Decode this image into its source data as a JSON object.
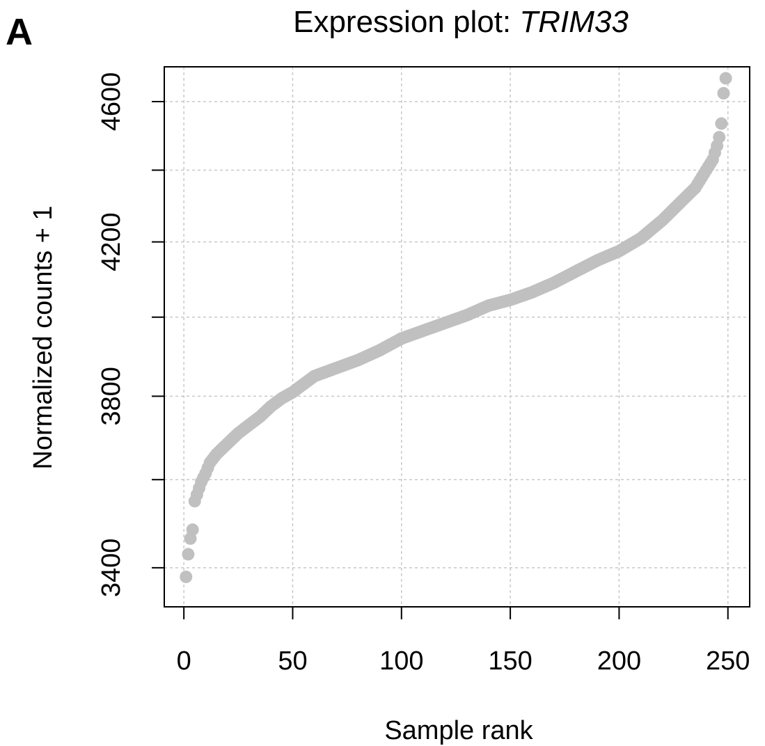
{
  "panel_label": "A",
  "title_prefix": "Expression plot: ",
  "title_gene": "TRIM33",
  "xlabel": "Sample rank",
  "ylabel": "Normalized counts + 1",
  "colors": {
    "points": "#c0c0c0",
    "grid": "#c8c8c8",
    "axis": "#000000"
  },
  "chart_data": {
    "type": "scatter",
    "title": "Expression plot: TRIM33",
    "xlabel": "Sample rank",
    "ylabel": "Normalized counts + 1",
    "xlim": [
      -9,
      260
    ],
    "ylim": [
      3315,
      4705
    ],
    "y_scale": "log",
    "x_ticks": [
      0,
      50,
      100,
      150,
      200,
      250
    ],
    "y_ticks": [
      3400,
      3800,
      4200,
      4600
    ],
    "grid": true,
    "n_points": 249,
    "rank_value_anchors": [
      [
        1,
        3380
      ],
      [
        2,
        3430
      ],
      [
        3,
        3465
      ],
      [
        4,
        3485
      ],
      [
        5,
        3550
      ],
      [
        6,
        3565
      ],
      [
        7,
        3580
      ],
      [
        8,
        3595
      ],
      [
        10,
        3615
      ],
      [
        12,
        3640
      ],
      [
        15,
        3660
      ],
      [
        20,
        3685
      ],
      [
        25,
        3710
      ],
      [
        30,
        3730
      ],
      [
        35,
        3750
      ],
      [
        40,
        3775
      ],
      [
        45,
        3795
      ],
      [
        50,
        3810
      ],
      [
        55,
        3830
      ],
      [
        60,
        3850
      ],
      [
        70,
        3870
      ],
      [
        80,
        3890
      ],
      [
        90,
        3915
      ],
      [
        100,
        3945
      ],
      [
        110,
        3965
      ],
      [
        120,
        3985
      ],
      [
        130,
        4005
      ],
      [
        140,
        4030
      ],
      [
        150,
        4045
      ],
      [
        160,
        4065
      ],
      [
        170,
        4090
      ],
      [
        180,
        4120
      ],
      [
        190,
        4150
      ],
      [
        200,
        4175
      ],
      [
        210,
        4210
      ],
      [
        220,
        4260
      ],
      [
        230,
        4320
      ],
      [
        235,
        4350
      ],
      [
        240,
        4400
      ],
      [
        243,
        4430
      ],
      [
        245,
        4470
      ],
      [
        246,
        4495
      ],
      [
        247,
        4535
      ],
      [
        248,
        4625
      ],
      [
        249,
        4670
      ]
    ]
  }
}
